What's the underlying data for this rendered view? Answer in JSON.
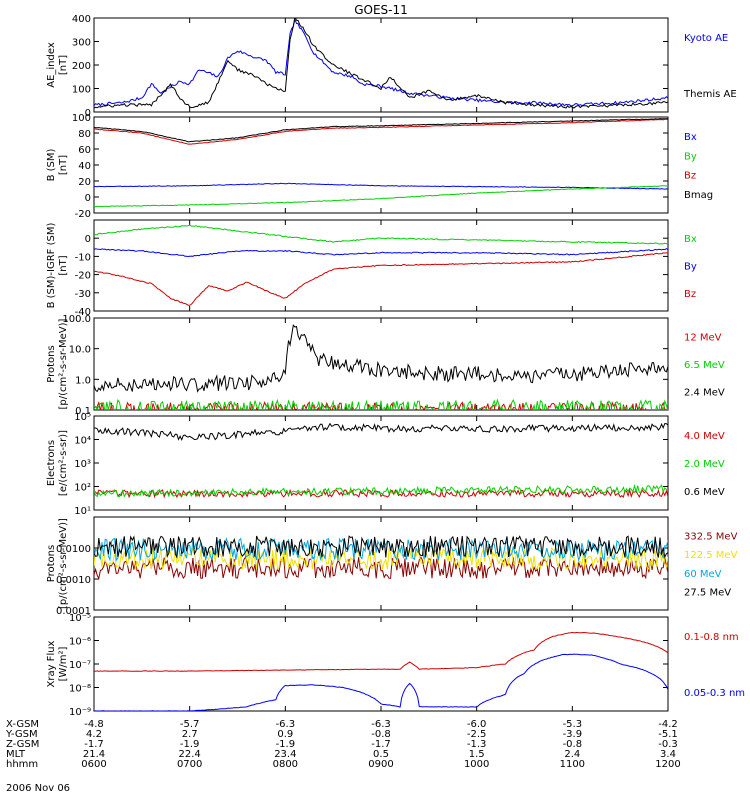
{
  "title": "GOES-11",
  "date": "2006 Nov 06",
  "colors": {
    "black": "#000000",
    "blue": "#0000ff",
    "green": "#00d000",
    "red": "#d00000",
    "darkred": "#8b0000",
    "yellow": "#f0e000",
    "cyan": "#00a8e0"
  },
  "time_axis": {
    "x_range": [
      6.0,
      12.0
    ],
    "ticks": [
      6,
      7,
      8,
      9,
      10,
      11,
      12
    ]
  },
  "chart_data": [
    {
      "type": "line",
      "ylabel": "AE_index\n[nT]",
      "ylim": [
        0,
        400
      ],
      "yticks": [
        0,
        100,
        200,
        300,
        400
      ],
      "yticklabels": [
        "0",
        "100",
        "200",
        "300",
        "400"
      ],
      "scale": "linear",
      "series": [
        {
          "name": "Kyoto AE",
          "color": "blue",
          "x": [
            6.0,
            6.3,
            6.5,
            6.6,
            6.7,
            6.9,
            7.0,
            7.1,
            7.3,
            7.4,
            7.5,
            7.7,
            7.8,
            7.9,
            8.0,
            8.05,
            8.1,
            8.2,
            8.3,
            8.5,
            8.7,
            8.8,
            9.0,
            9.2,
            9.3,
            9.5,
            9.7,
            10.0,
            10.3,
            10.6,
            11.0,
            11.5,
            12.0
          ],
          "y": [
            30,
            40,
            60,
            120,
            80,
            130,
            120,
            180,
            150,
            230,
            260,
            230,
            220,
            170,
            160,
            330,
            390,
            330,
            250,
            170,
            150,
            120,
            110,
            90,
            80,
            70,
            60,
            50,
            40,
            40,
            30,
            40,
            60
          ]
        },
        {
          "name": "Themis AE",
          "color": "black",
          "x": [
            6.0,
            6.3,
            6.6,
            6.8,
            6.9,
            7.0,
            7.2,
            7.4,
            7.5,
            7.7,
            7.8,
            7.9,
            8.0,
            8.05,
            8.1,
            8.2,
            8.3,
            8.5,
            8.7,
            8.8,
            9.0,
            9.1,
            9.3,
            9.5,
            9.7,
            10.0,
            10.3,
            10.6,
            11.0,
            11.5,
            12.0
          ],
          "y": [
            20,
            30,
            30,
            120,
            60,
            20,
            40,
            220,
            180,
            150,
            120,
            100,
            90,
            310,
            400,
            350,
            280,
            200,
            160,
            140,
            100,
            150,
            60,
            90,
            50,
            70,
            40,
            30,
            20,
            30,
            40
          ]
        }
      ]
    },
    {
      "type": "line",
      "ylabel": "B (SM)\n[nT]",
      "ylim": [
        -20,
        100
      ],
      "yticks": [
        -20,
        0,
        20,
        40,
        60,
        80,
        100
      ],
      "yticklabels": [
        "-20",
        "0",
        "20",
        "40",
        "60",
        "80",
        "100"
      ],
      "scale": "linear",
      "series": [
        {
          "name": "Bx",
          "color": "blue",
          "x": [
            6,
            7,
            8,
            9,
            10,
            11,
            12
          ],
          "y": [
            13,
            14,
            17,
            14,
            13,
            12,
            10
          ]
        },
        {
          "name": "By",
          "color": "green",
          "x": [
            6,
            7,
            8,
            9,
            10,
            11,
            12
          ],
          "y": [
            -12,
            -10,
            -7,
            -2,
            5,
            10,
            14
          ]
        },
        {
          "name": "Bz",
          "color": "red",
          "x": [
            6,
            6.5,
            7,
            7.5,
            8,
            8.5,
            9,
            10,
            11,
            12
          ],
          "y": [
            85,
            80,
            66,
            72,
            82,
            86,
            87,
            90,
            93,
            97
          ]
        },
        {
          "name": "Bmag",
          "color": "black",
          "x": [
            6,
            6.5,
            7,
            7.5,
            8,
            8.5,
            9,
            10,
            11,
            12
          ],
          "y": [
            87,
            82,
            69,
            74,
            84,
            88,
            89,
            92,
            95,
            98
          ]
        }
      ]
    },
    {
      "type": "line",
      "ylabel": "B (SM)-IGRF (SM)\n[nT]",
      "ylim": [
        -40,
        10
      ],
      "yticks": [
        -40,
        -30,
        -20,
        -10,
        0
      ],
      "yticklabels": [
        "-40",
        "-30",
        "-20",
        "-10",
        "0"
      ],
      "scale": "linear",
      "series": [
        {
          "name": "Bx",
          "color": "green",
          "x": [
            6,
            6.5,
            7,
            7.5,
            8,
            8.5,
            9,
            10,
            11,
            12
          ],
          "y": [
            2,
            5,
            7,
            4,
            1,
            -2,
            0,
            -1,
            -2,
            -3
          ]
        },
        {
          "name": "By",
          "color": "blue",
          "x": [
            6,
            6.5,
            7,
            7.5,
            8,
            8.5,
            9,
            10,
            11,
            12
          ],
          "y": [
            -6,
            -7,
            -10,
            -7,
            -7,
            -9,
            -8,
            -8,
            -9,
            -6
          ]
        },
        {
          "name": "Bz",
          "color": "red",
          "x": [
            6,
            6.3,
            6.6,
            6.8,
            7.0,
            7.2,
            7.4,
            7.6,
            7.8,
            8.0,
            8.2,
            8.5,
            9.0,
            10.0,
            11.0,
            12.0
          ],
          "y": [
            -18,
            -21,
            -25,
            -33,
            -37,
            -26,
            -29,
            -24,
            -29,
            -33,
            -25,
            -17,
            -15,
            -14,
            -13,
            -8
          ]
        }
      ]
    },
    {
      "type": "line",
      "ylabel": "Protons\n[p/(cm²-s-sr-MeV)]",
      "ylim": [
        0.1,
        100.0
      ],
      "yticks": [
        0.1,
        1.0,
        10.0,
        100.0
      ],
      "yticklabels": [
        "0.1",
        "1.0",
        "10.0",
        "100.0"
      ],
      "scale": "log",
      "series": [
        {
          "name": "12 MeV",
          "color": "red",
          "x": [
            6,
            12
          ],
          "y": [
            0.1,
            0.1
          ]
        },
        {
          "name": "6.5 MeV",
          "color": "green",
          "x": [
            6,
            12
          ],
          "y": [
            0.12,
            0.12
          ]
        },
        {
          "name": "2.4 MeV",
          "color": "black",
          "x": [
            6.0,
            7.0,
            7.8,
            8.0,
            8.1,
            8.3,
            8.6,
            9.0,
            9.5,
            10.0,
            10.5,
            11.0,
            11.5,
            12.0
          ],
          "y": [
            0.7,
            0.7,
            0.8,
            1.2,
            40.0,
            5.0,
            3.0,
            2.0,
            1.5,
            1.5,
            1.2,
            1.5,
            2.0,
            2.5
          ]
        }
      ]
    },
    {
      "type": "line",
      "ylabel": "Electrons\n[e/(cm²-s-sr)]",
      "ylim": [
        10,
        100000
      ],
      "yticks": [
        10,
        100,
        1000,
        10000,
        100000
      ],
      "yticklabels": [
        "10¹",
        "10²",
        "10³",
        "10⁴",
        "10⁵"
      ],
      "scale": "log",
      "series": [
        {
          "name": "4.0 MeV",
          "color": "red",
          "x": [
            6,
            12
          ],
          "y": [
            50,
            50
          ]
        },
        {
          "name": "2.0 MeV",
          "color": "green",
          "x": [
            6,
            12
          ],
          "y": [
            50,
            80
          ]
        },
        {
          "name": "0.6 MeV",
          "color": "black",
          "x": [
            6.0,
            6.5,
            7.0,
            7.5,
            8.0,
            8.3,
            9.0,
            10.0,
            11.0,
            12.0
          ],
          "y": [
            25000,
            20000,
            12000,
            16000,
            22000,
            35000,
            30000,
            28000,
            30000,
            35000
          ]
        }
      ]
    },
    {
      "type": "line",
      "ylabel": "Protons\n[p/(cm²-s-sr-MeV)]",
      "ylim": [
        0.0001,
        0.1
      ],
      "yticks": [
        0.0001,
        0.001,
        0.01
      ],
      "yticklabels": [
        "0.0001",
        "0.0010",
        "0.0100"
      ],
      "scale": "log",
      "series": [
        {
          "name": "332.5 MeV",
          "color": "darkred",
          "x": [
            6,
            12
          ],
          "y": [
            0.0023,
            0.0023
          ]
        },
        {
          "name": "122.5 MeV",
          "color": "yellow",
          "x": [
            6,
            12
          ],
          "y": [
            0.0045,
            0.0045
          ]
        },
        {
          "name": "60 MeV",
          "color": "cyan",
          "x": [
            6,
            12
          ],
          "y": [
            0.009,
            0.009
          ]
        },
        {
          "name": "27.5 MeV",
          "color": "black",
          "x": [
            6,
            12
          ],
          "y": [
            0.011,
            0.011
          ]
        }
      ]
    },
    {
      "type": "line",
      "ylabel": "Xray Flux\n[W/m²]",
      "ylim": [
        1e-09,
        1e-05
      ],
      "yticks": [
        1e-09,
        1e-08,
        1e-07,
        1e-06,
        1e-05
      ],
      "yticklabels": [
        "10⁻⁹",
        "10⁻⁸",
        "10⁻⁷",
        "10⁻⁶",
        "10⁻⁵"
      ],
      "scale": "log",
      "series": [
        {
          "name": "0.1-0.8 nm",
          "color": "red",
          "x": [
            6.0,
            7.0,
            8.0,
            9.0,
            9.2,
            9.3,
            9.4,
            10.0,
            10.3,
            10.6,
            10.8,
            11.0,
            11.2,
            11.5,
            12.0
          ],
          "y": [
            5e-08,
            5e-08,
            5.5e-08,
            6e-08,
            6e-08,
            1.2e-07,
            6e-08,
            7e-08,
            1e-07,
            4e-07,
            1.5e-06,
            2.2e-06,
            2.1e-06,
            1.4e-06,
            3e-07
          ]
        },
        {
          "name": "0.05-0.3 nm",
          "color": "blue",
          "x": [
            6.0,
            7.0,
            7.3,
            7.6,
            7.9,
            8.0,
            8.3,
            8.6,
            9.0,
            9.2,
            9.3,
            9.4,
            9.6,
            10.0,
            10.3,
            10.5,
            10.7,
            10.9,
            11.0,
            11.2,
            11.5,
            12.0
          ],
          "y": [
            1e-09,
            1e-09,
            1.2e-09,
            1.5e-09,
            3e-09,
            1.2e-08,
            1.3e-08,
            1e-08,
            2e-09,
            1.5e-09,
            1.5e-08,
            1.5e-09,
            1.5e-09,
            1.5e-09,
            5e-09,
            4e-08,
            1.5e-07,
            2.5e-07,
            2.6e-07,
            2.4e-07,
            1e-07,
            8e-09
          ]
        }
      ]
    }
  ],
  "ephemeris": {
    "rows": [
      {
        "label": "X-GSM",
        "values": [
          "-4.8",
          "-5.7",
          "-6.3",
          "-6.3",
          "-6.0",
          "-5.3",
          "-4.2"
        ]
      },
      {
        "label": "Y-GSM",
        "values": [
          "4.2",
          "2.7",
          "0.9",
          "-0.8",
          "-2.5",
          "-3.9",
          "-5.1"
        ]
      },
      {
        "label": "Z-GSM",
        "values": [
          "-1.7",
          "-1.9",
          "-1.9",
          "-1.7",
          "-1.3",
          "-0.8",
          "-0.3"
        ]
      },
      {
        "label": "MLT",
        "values": [
          "21.4",
          "22.4",
          "23.4",
          "0.5",
          "1.5",
          "2.4",
          "3.4"
        ]
      },
      {
        "label": "hhmm",
        "values": [
          "0600",
          "0700",
          "0800",
          "0900",
          "1000",
          "1100",
          "1200"
        ]
      }
    ]
  }
}
